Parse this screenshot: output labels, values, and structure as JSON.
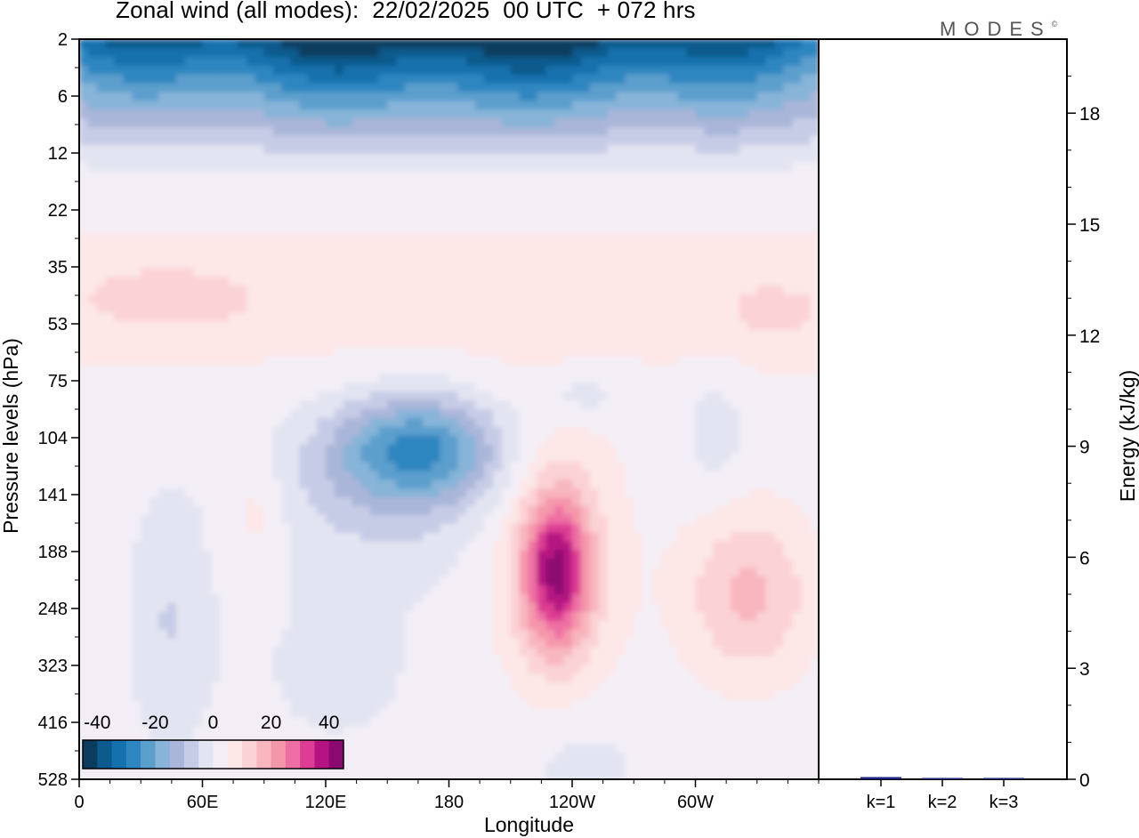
{
  "title": "Zonal wind (all modes):  22/02/2025  00 UTC  + 072 hrs",
  "logo": "MODES",
  "logo_mark": "©",
  "chart_data": [
    {
      "type": "heatmap",
      "title": "Zonal wind (all modes):  22/02/2025  00 UTC  + 072 hrs",
      "xlabel": "Longitude",
      "ylabel": "Pressure levels (hPa)",
      "x_ticks": [
        "0",
        "60E",
        "120E",
        "180",
        "120W",
        "60W"
      ],
      "x_tick_values": [
        0,
        60,
        120,
        180,
        240,
        300
      ],
      "xlim": [
        0,
        360
      ],
      "y_ticks": [
        "2",
        "6",
        "12",
        "22",
        "35",
        "53",
        "75",
        "104",
        "141",
        "188",
        "248",
        "323",
        "416",
        "528"
      ],
      "y_scale": "levels (top 2 hPa, bottom 528 hPa)",
      "colorbar": {
        "ticks": [
          "-40",
          "-20",
          "0",
          "20",
          "40"
        ],
        "range": [
          -45,
          45
        ],
        "step": 5,
        "placement": "bottom-left",
        "colors": [
          "#0b3d5e",
          "#0d5a8c",
          "#1471ad",
          "#2f86c0",
          "#5b9fcd",
          "#87b4d8",
          "#aab6d9",
          "#c7cce6",
          "#e2e4f1",
          "#f3eef6",
          "#fde7e7",
          "#fbd2d6",
          "#f8b6be",
          "#f597ab",
          "#ee6fa3",
          "#dd3d93",
          "#b51282",
          "#8b0a72",
          "#5a0563"
        ]
      },
      "fields": [
        {
          "name": "stratospheric easterlies",
          "lon_range": [
            0,
            360
          ],
          "levels": [
            "2",
            "22"
          ],
          "min_value": -45
        },
        {
          "name": "upper-level westerly band",
          "lon_range": [
            0,
            360
          ],
          "levels": [
            "22",
            "75"
          ],
          "max_value": 15
        },
        {
          "name": "easterly core 130E",
          "lon_center": 130,
          "level": "104",
          "min_value": -25
        },
        {
          "name": "westerly jet 130W",
          "lon_center": 232,
          "level": "188",
          "max_value": 30
        },
        {
          "name": "westerly max 30W",
          "lon_center": 325,
          "level": "188",
          "max_value": 15
        }
      ]
    },
    {
      "type": "bar",
      "ylabel": "Energy (kJ/kg)",
      "categories": [
        "k=1",
        "k=2",
        "k=3"
      ],
      "values": [
        0.06,
        0.03,
        0.02
      ],
      "ylim": [
        0,
        20
      ],
      "y_ticks": [
        0,
        3,
        6,
        9,
        12,
        15,
        18
      ],
      "y_axis_side": "right",
      "grid": false,
      "bar_color": "#1a237e"
    }
  ]
}
